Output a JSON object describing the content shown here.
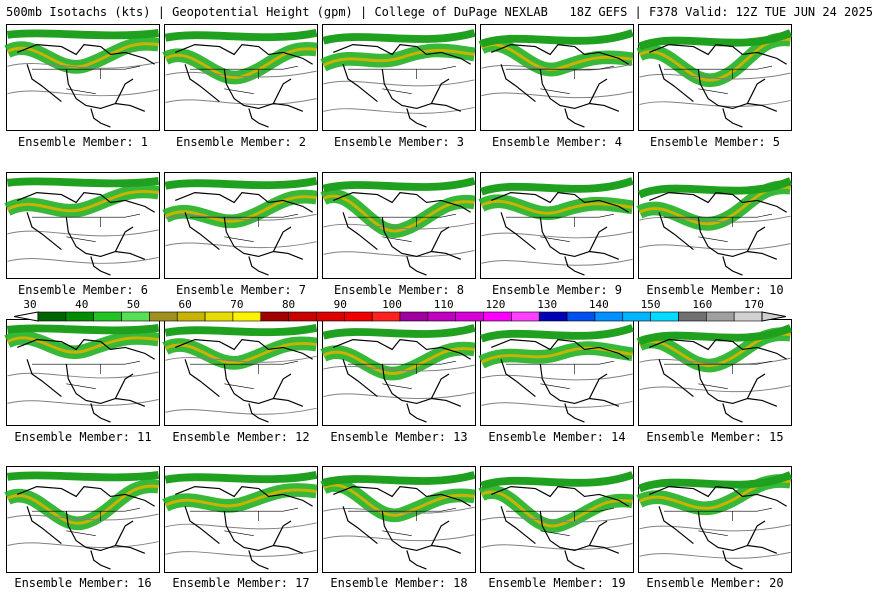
{
  "header": {
    "title": "500mb Isotachs (kts) | Geopotential Height (gpm) | College of DuPage NEXLAB   18Z GEFS | F378 Valid: 12Z TUE JUN 24 2025"
  },
  "panels": [
    {
      "label": "Ensemble Member: 1"
    },
    {
      "label": "Ensemble Member: 2"
    },
    {
      "label": "Ensemble Member: 3"
    },
    {
      "label": "Ensemble Member: 4"
    },
    {
      "label": "Ensemble Member: 5"
    },
    {
      "label": "Ensemble Member: 6"
    },
    {
      "label": "Ensemble Member: 7"
    },
    {
      "label": "Ensemble Member: 8"
    },
    {
      "label": "Ensemble Member: 9"
    },
    {
      "label": "Ensemble Member: 10"
    },
    {
      "label": "Ensemble Member: 11"
    },
    {
      "label": "Ensemble Member: 12"
    },
    {
      "label": "Ensemble Member: 13"
    },
    {
      "label": "Ensemble Member: 14"
    },
    {
      "label": "Ensemble Member: 15"
    },
    {
      "label": "Ensemble Member: 16"
    },
    {
      "label": "Ensemble Member: 17"
    },
    {
      "label": "Ensemble Member: 18"
    },
    {
      "label": "Ensemble Member: 19"
    },
    {
      "label": "Ensemble Member: 20"
    }
  ],
  "colorbar": {
    "ticks": [
      "30",
      "40",
      "50",
      "60",
      "70",
      "80",
      "90",
      "100",
      "110",
      "120",
      "130",
      "140",
      "150",
      "160",
      "170"
    ],
    "colors": [
      "#006400",
      "#008c00",
      "#22c322",
      "#55e055",
      "#a09020",
      "#c8b400",
      "#e6dc00",
      "#fff200",
      "#a00000",
      "#c80000",
      "#dc0000",
      "#f00000",
      "#ff2020",
      "#a000a0",
      "#c000c0",
      "#d800d8",
      "#ff00ff",
      "#ff40ff",
      "#0000b4",
      "#0050f0",
      "#0090ff",
      "#00b4ff",
      "#00dcff",
      "#707070",
      "#a0a0a0",
      "#d0d0d0"
    ]
  }
}
